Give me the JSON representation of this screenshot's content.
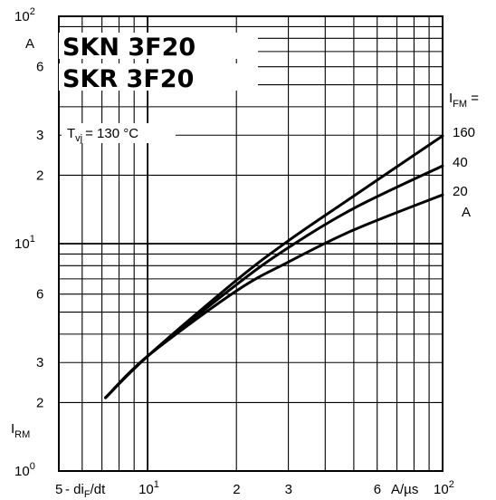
{
  "chart_data": {
    "type": "line",
    "title": [
      "SKN 3F20",
      "SKR 3F20"
    ],
    "condition": {
      "prefix": "T",
      "sub": "vj",
      "value": "= 130 °C"
    },
    "ylabel": {
      "main": "I",
      "sub": "RM"
    },
    "xlabel": {
      "prefix": "- di",
      "sub": "F",
      "suffix": "/dt"
    },
    "x_unit": "A/µs",
    "y_unit": "A",
    "x_scale": "log",
    "y_scale": "log",
    "xlim": [
      5,
      100
    ],
    "ylim": [
      1,
      100
    ],
    "grid": true,
    "legend_title": {
      "main": "I",
      "sub": "FM",
      "suffix": " ="
    },
    "x_tick_labels": [
      {
        "v": 5,
        "t": "5"
      },
      {
        "v": 10,
        "t": "10",
        "sup": "1"
      },
      {
        "v": 20,
        "t": "2"
      },
      {
        "v": 30,
        "t": "3"
      },
      {
        "v": 60,
        "t": "6"
      },
      {
        "v": 100,
        "t": "10",
        "sup": "2"
      }
    ],
    "y_tick_labels": [
      {
        "v": 1,
        "t": "10",
        "sup": "0"
      },
      {
        "v": 2,
        "t": "2"
      },
      {
        "v": 3,
        "t": "3"
      },
      {
        "v": 6,
        "t": "6"
      },
      {
        "v": 10,
        "t": "10",
        "sup": "1"
      },
      {
        "v": 20,
        "t": "2"
      },
      {
        "v": 30,
        "t": "3"
      },
      {
        "v": 60,
        "t": "6"
      },
      {
        "v": 100,
        "t": "10",
        "sup": "2"
      }
    ],
    "series": [
      {
        "name": "160",
        "x": [
          7.2,
          10,
          20,
          30,
          50,
          100
        ],
        "y": [
          2.1,
          3.2,
          6.9,
          10.3,
          16.2,
          29.8
        ]
      },
      {
        "name": "40",
        "x": [
          7.2,
          10,
          20,
          30,
          50,
          100
        ],
        "y": [
          2.1,
          3.2,
          6.6,
          9.6,
          14.3,
          22.0
        ]
      },
      {
        "name": "20",
        "x": [
          7.2,
          10,
          20,
          30,
          50,
          100
        ],
        "y": [
          2.1,
          3.2,
          6.2,
          8.3,
          11.5,
          16.4
        ]
      }
    ],
    "series_unit": "A"
  }
}
